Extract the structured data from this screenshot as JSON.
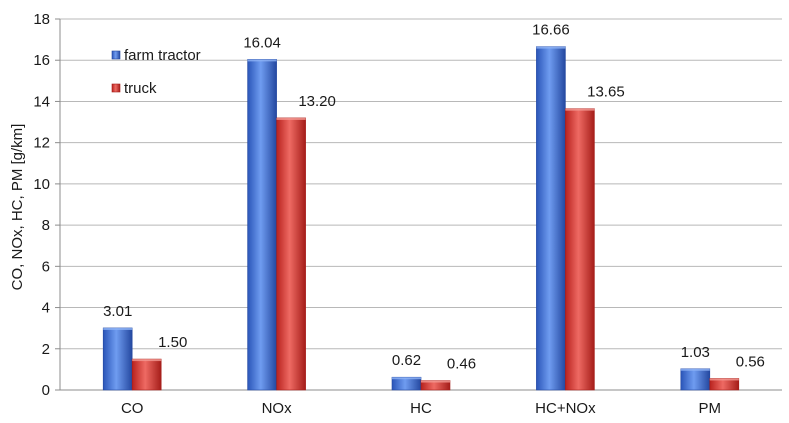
{
  "chart_data": {
    "type": "bar",
    "categories": [
      "CO",
      "NOx",
      "HC",
      "HC+NOx",
      "PM"
    ],
    "series": [
      {
        "name": "farm tractor",
        "values": [
          3.01,
          16.04,
          0.62,
          16.66,
          1.03
        ],
        "labels": [
          "3.01",
          "16.04",
          "0.62",
          "16.66",
          "1.03"
        ],
        "color": "#3f6fd0"
      },
      {
        "name": "truck",
        "values": [
          1.5,
          13.2,
          0.46,
          13.65,
          0.56
        ],
        "labels": [
          "1.50",
          "13.20",
          "0.46",
          "13.65",
          "0.56"
        ],
        "color": "#d63a34"
      }
    ],
    "title": "",
    "xlabel": "",
    "ylabel": "CO, NOx, HC, PM [g/km]",
    "ylim": [
      0,
      18
    ],
    "yticks": [
      0,
      2,
      4,
      6,
      8,
      10,
      12,
      14,
      16,
      18
    ],
    "grid": true,
    "legend_position": "top-left"
  }
}
